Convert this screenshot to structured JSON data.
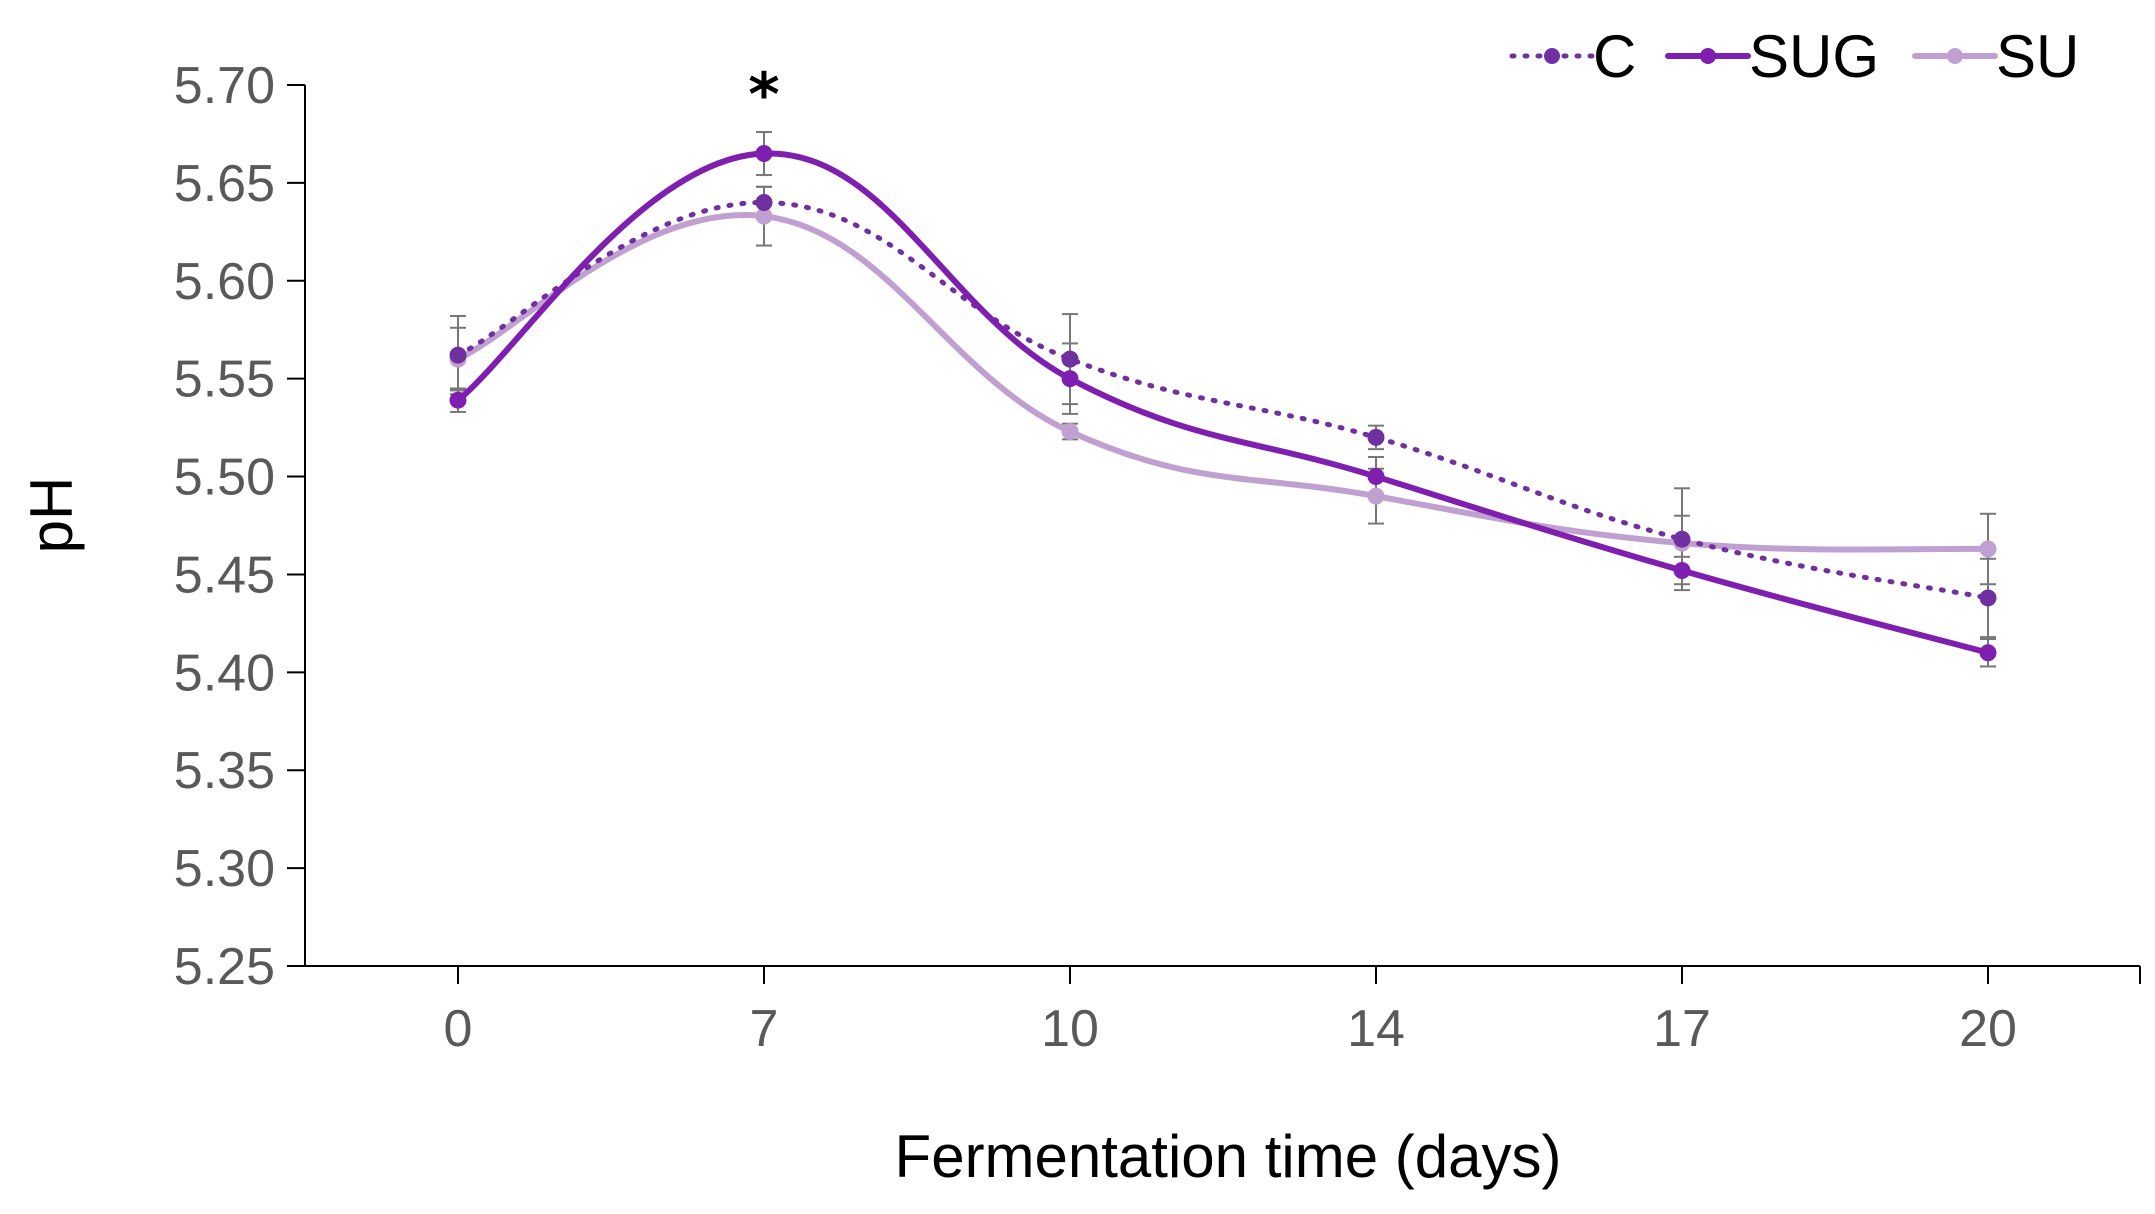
{
  "chart_data": {
    "type": "line",
    "title": "",
    "xlabel": "Fermentation time (days)",
    "ylabel": "pH",
    "categories": [
      "0",
      "7",
      "10",
      "14",
      "17",
      "20"
    ],
    "ylim": [
      5.25,
      5.7
    ],
    "yticks": [
      "5.25",
      "5.30",
      "5.35",
      "5.40",
      "5.45",
      "5.50",
      "5.55",
      "5.60",
      "5.65",
      "5.70"
    ],
    "grid": false,
    "legend_position": "top-right",
    "annotations": [
      {
        "text": "*",
        "category": "7"
      }
    ],
    "series": [
      {
        "name": "C",
        "style": "dotted",
        "color": "#7030A0",
        "values": [
          5.562,
          5.64,
          5.56,
          5.52,
          5.468,
          5.438
        ],
        "errors": [
          0.02,
          0.008,
          0.023,
          0.006,
          0.026,
          0.02
        ]
      },
      {
        "name": "SUG",
        "style": "solid",
        "color": "#7F1FB0",
        "values": [
          5.539,
          5.665,
          5.55,
          5.5,
          5.452,
          5.41
        ],
        "errors": [
          0.006,
          0.011,
          0.018,
          0.01,
          0.007,
          0.007
        ]
      },
      {
        "name": "SU",
        "style": "solid",
        "color": "#C0A0D0",
        "values": [
          5.56,
          5.633,
          5.523,
          5.49,
          5.466,
          5.463
        ],
        "errors": [
          0.016,
          0.015,
          0.004,
          0.014,
          0.014,
          0.018
        ]
      }
    ]
  }
}
